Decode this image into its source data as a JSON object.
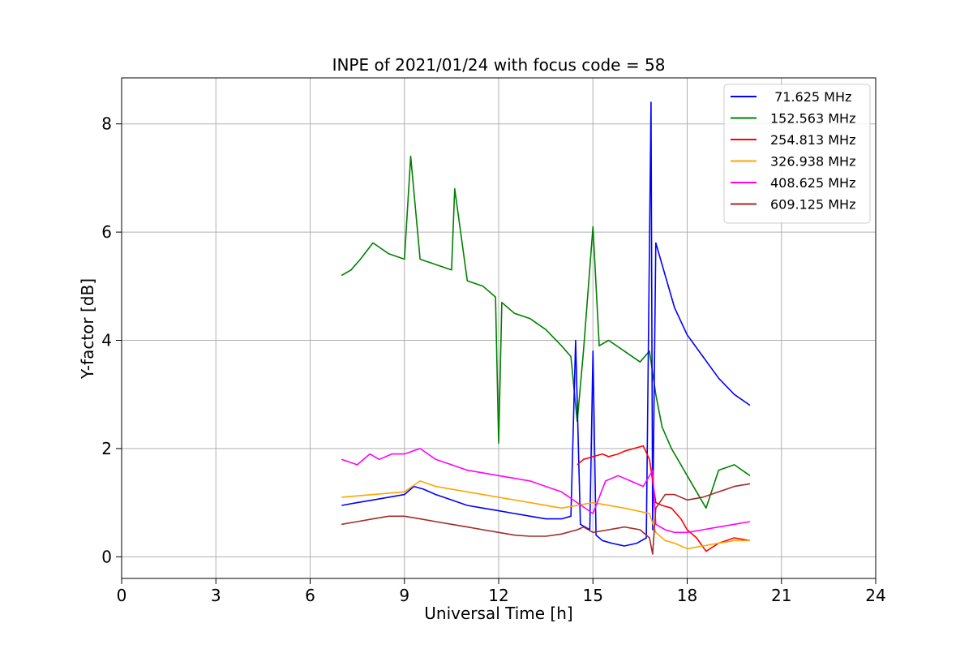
{
  "chart_data": {
    "type": "line",
    "title": "INPE of 2021/01/24 with focus code = 58",
    "xlabel": "Universal Time [h]",
    "ylabel": "Y-factor [dB]",
    "xlim": [
      0,
      24
    ],
    "ylim": [
      -0.4,
      8.85
    ],
    "xticks": [
      0,
      3,
      6,
      9,
      12,
      15,
      18,
      21,
      24
    ],
    "yticks": [
      0,
      2,
      4,
      6,
      8
    ],
    "grid": true,
    "legend_position": "top-right",
    "series": [
      {
        "name": " 71.625 MHz",
        "color": "#0000ff",
        "x": [
          7.0,
          7.5,
          8.0,
          8.5,
          9.0,
          9.3,
          9.6,
          10.0,
          10.5,
          11.0,
          11.5,
          12.0,
          12.5,
          13.0,
          13.5,
          14.0,
          14.3,
          14.45,
          14.6,
          14.9,
          15.0,
          15.1,
          15.3,
          15.6,
          16.0,
          16.4,
          16.7,
          16.85,
          16.9,
          17.0,
          17.3,
          17.6,
          18.0,
          18.5,
          19.0,
          19.5,
          20.0
        ],
        "y": [
          0.95,
          1.0,
          1.05,
          1.1,
          1.15,
          1.3,
          1.25,
          1.15,
          1.05,
          0.95,
          0.9,
          0.85,
          0.8,
          0.75,
          0.7,
          0.7,
          0.75,
          4.0,
          0.6,
          0.5,
          3.8,
          0.4,
          0.3,
          0.25,
          0.2,
          0.25,
          0.35,
          8.4,
          0.5,
          5.8,
          5.2,
          4.6,
          4.1,
          3.7,
          3.3,
          3.0,
          2.8
        ]
      },
      {
        "name": "152.563 MHz",
        "color": "#008000",
        "x": [
          7.0,
          7.3,
          7.6,
          8.0,
          8.5,
          9.0,
          9.2,
          9.5,
          10.0,
          10.5,
          10.6,
          11.0,
          11.5,
          11.9,
          12.0,
          12.1,
          12.5,
          13.0,
          13.5,
          14.0,
          14.3,
          14.5,
          14.7,
          15.0,
          15.2,
          15.5,
          16.0,
          16.5,
          16.8,
          17.0,
          17.2,
          17.5,
          18.0,
          18.3,
          18.6,
          19.0,
          19.5,
          20.0
        ],
        "y": [
          5.2,
          5.3,
          5.5,
          5.8,
          5.6,
          5.5,
          7.4,
          5.5,
          5.4,
          5.3,
          6.8,
          5.1,
          5.0,
          4.8,
          2.1,
          4.7,
          4.5,
          4.4,
          4.2,
          3.9,
          3.7,
          2.5,
          3.8,
          6.1,
          3.9,
          4.0,
          3.8,
          3.6,
          3.8,
          3.0,
          2.4,
          2.0,
          1.5,
          1.2,
          0.9,
          1.6,
          1.7,
          1.5
        ]
      },
      {
        "name": "254.813 MHz",
        "color": "#ff0000",
        "x": [
          14.5,
          14.7,
          15.0,
          15.3,
          15.5,
          15.8,
          16.0,
          16.3,
          16.6,
          16.8,
          17.0,
          17.2,
          17.5,
          17.8,
          18.0,
          18.3,
          18.6,
          19.0,
          19.5,
          20.0
        ],
        "y": [
          1.7,
          1.8,
          1.85,
          1.9,
          1.85,
          1.9,
          1.95,
          2.0,
          2.05,
          1.8,
          1.0,
          0.95,
          0.9,
          0.7,
          0.5,
          0.35,
          0.1,
          0.25,
          0.35,
          0.3
        ]
      },
      {
        "name": "326.938 MHz",
        "color": "#ffa500",
        "x": [
          7.0,
          8.0,
          9.0,
          9.5,
          10.0,
          11.0,
          12.0,
          13.0,
          14.0,
          15.0,
          16.0,
          16.8,
          17.0,
          17.3,
          17.6,
          18.0,
          18.5,
          19.0,
          19.5,
          20.0
        ],
        "y": [
          1.1,
          1.15,
          1.2,
          1.4,
          1.3,
          1.2,
          1.1,
          1.0,
          0.9,
          1.0,
          0.9,
          0.8,
          0.45,
          0.3,
          0.25,
          0.15,
          0.2,
          0.25,
          0.3,
          0.3
        ]
      },
      {
        "name": "408.625 MHz",
        "color": "#ff00ff",
        "x": [
          7.0,
          7.5,
          7.9,
          8.2,
          8.6,
          9.0,
          9.5,
          10.0,
          10.5,
          11.0,
          11.5,
          12.0,
          12.5,
          13.0,
          13.5,
          14.0,
          14.5,
          15.0,
          15.4,
          15.8,
          16.2,
          16.6,
          16.9,
          17.0,
          17.3,
          17.6,
          18.0,
          18.5,
          19.0,
          19.5,
          20.0
        ],
        "y": [
          1.8,
          1.7,
          1.9,
          1.8,
          1.9,
          1.9,
          2.0,
          1.8,
          1.7,
          1.6,
          1.55,
          1.5,
          1.45,
          1.4,
          1.3,
          1.2,
          1.0,
          0.8,
          1.4,
          1.5,
          1.4,
          1.3,
          1.6,
          0.6,
          0.5,
          0.45,
          0.45,
          0.5,
          0.55,
          0.6,
          0.65
        ]
      },
      {
        "name": "609.125 MHz",
        "color": "#a52a2a",
        "x": [
          7.0,
          7.5,
          8.0,
          8.5,
          9.0,
          9.5,
          10.0,
          10.5,
          11.0,
          11.5,
          12.0,
          12.5,
          13.0,
          13.5,
          14.0,
          14.5,
          14.7,
          15.0,
          15.5,
          16.0,
          16.5,
          16.8,
          16.9,
          17.0,
          17.3,
          17.6,
          18.0,
          18.5,
          19.0,
          19.5,
          20.0
        ],
        "y": [
          0.6,
          0.65,
          0.7,
          0.75,
          0.75,
          0.7,
          0.65,
          0.6,
          0.55,
          0.5,
          0.45,
          0.4,
          0.38,
          0.38,
          0.42,
          0.5,
          0.55,
          0.45,
          0.5,
          0.55,
          0.5,
          0.35,
          0.05,
          0.9,
          1.15,
          1.15,
          1.05,
          1.1,
          1.2,
          1.3,
          1.35
        ]
      }
    ]
  }
}
